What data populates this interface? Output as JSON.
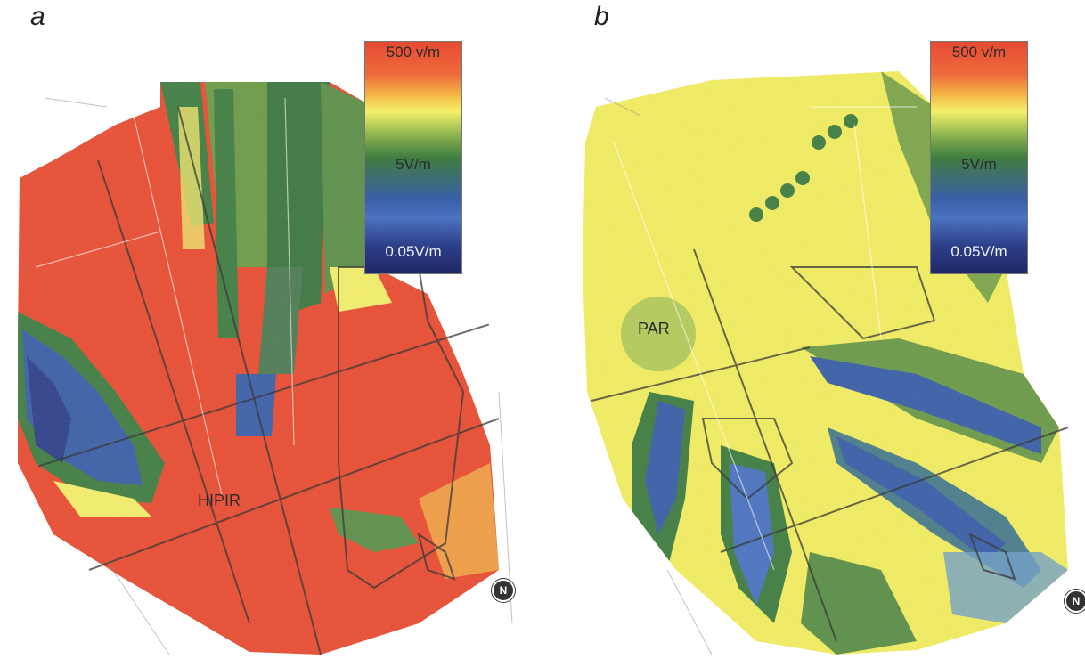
{
  "panels": [
    {
      "letter": "a",
      "site_label": "HIPIR",
      "legend": {
        "top_label": "500 v/m",
        "mid_label": "5V/m",
        "bottom_label": "0.05V/m"
      },
      "north_symbol": "N"
    },
    {
      "letter": "b",
      "site_label": "PAR",
      "legend": {
        "top_label": "500 v/m",
        "mid_label": "5V/m",
        "bottom_label": "0.05V/m"
      },
      "north_symbol": "N"
    }
  ],
  "colors": {
    "high": "#e64a33",
    "upper": "#f5f06a",
    "mid": "#3f7d40",
    "low": "#3a5fa8",
    "lowest": "#1f2866"
  },
  "icons": [
    "compass-north-icon"
  ]
}
